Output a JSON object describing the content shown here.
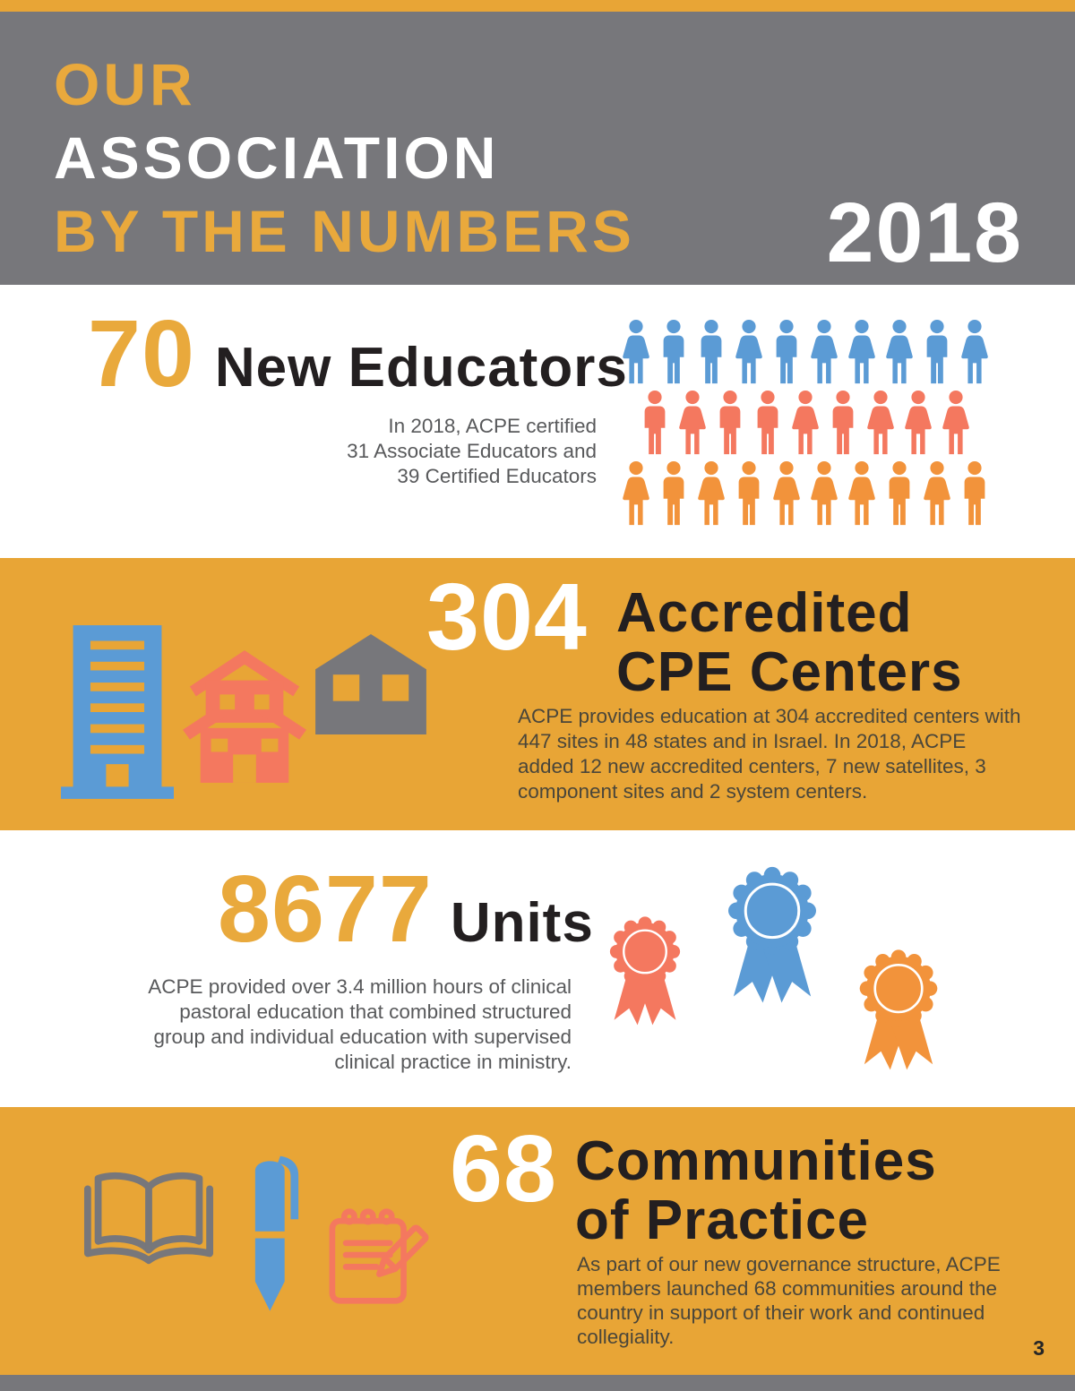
{
  "page": {
    "number": "3"
  },
  "header": {
    "line1": "OUR",
    "line2": "ASSOCIATION",
    "line3": "BY THE NUMBERS",
    "year": "2018"
  },
  "stats": {
    "educators": {
      "number": "70",
      "title": "New Educators",
      "body": "In 2018, ACPE certified\n31 Associate Educators and\n39 Certified Educators"
    },
    "centers": {
      "number": "304",
      "title_line1": "Accredited",
      "title_line2": "CPE Centers",
      "body": "ACPE provides education at 304 accredited centers with 447 sites in 48 states and in Israel. In 2018, ACPE added 12 new accredited centers, 7 new satellites, 3 component sites and 2 system centers."
    },
    "units": {
      "number": "8677",
      "title": "Units",
      "body": "ACPE provided over 3.4 million hours of clinical pastoral education that combined structured group and individual education with supervised clinical practice in ministry."
    },
    "communities": {
      "number": "68",
      "title_line1": "Communities",
      "title_line2": "of Practice",
      "body": "As part of our new governance structure, ACPE members launched 68 communities around the country in support of their work and continued collegiality."
    }
  },
  "pictogram_rows": [
    {
      "name": "pictogram-row-blue",
      "color_key": "blue",
      "pattern": "WMMWMWWWMW"
    },
    {
      "name": "pictogram-row-salmon",
      "color_key": "salmon",
      "pattern": "MWMMWMWWW"
    },
    {
      "name": "pictogram-row-orange",
      "color_key": "orange",
      "pattern": "WMWMWWWMWM"
    }
  ],
  "colors": {
    "gold": "#E8A536",
    "gold_text": "#E9A93C",
    "header_gray": "#77777B",
    "blue": "#5B9BD5",
    "salmon": "#F4785F",
    "orange": "#F2933B",
    "heading_black": "#231F20",
    "body_gray": "#58595B",
    "body_dark": "#4A463A"
  }
}
